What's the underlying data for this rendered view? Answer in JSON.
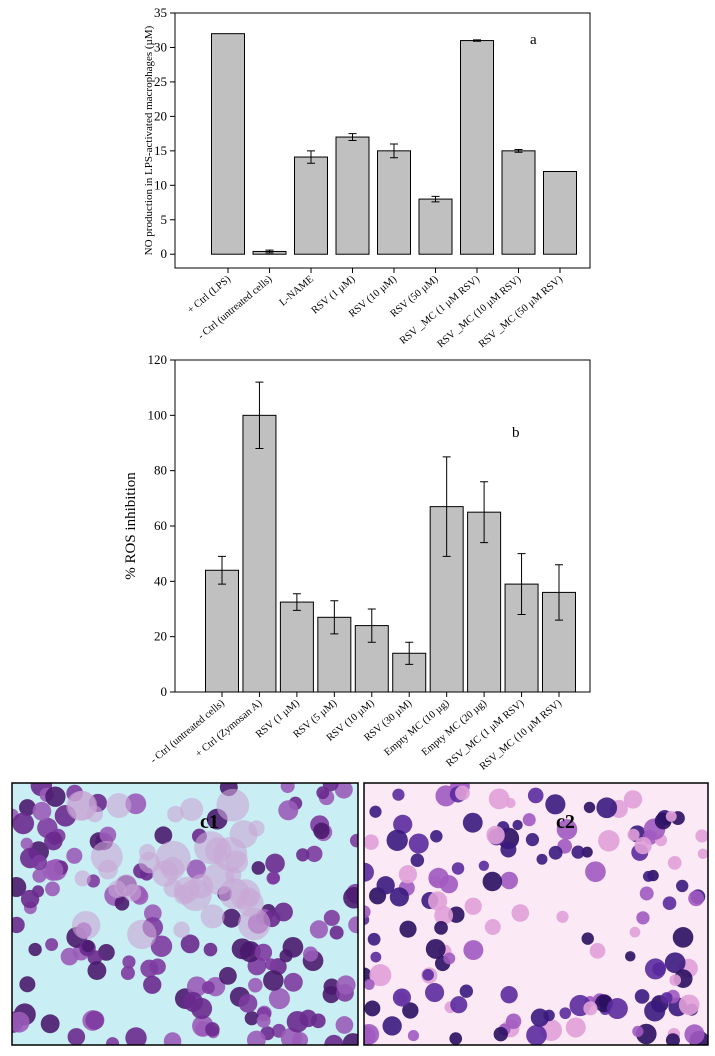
{
  "chart_data": [
    {
      "type": "bar",
      "annotation": "a",
      "y_label": "NO production in LPS-activated macrophages (µM)",
      "categories": [
        "+ Ctrl (LPS)",
        "- Ctrl (untreated cells)",
        "L-NAME",
        "RSV (1 µM)",
        "RSV (10 µM)",
        "RSV (50 µM)",
        "RSV _MC (1 µM RSV)",
        "RSV _MC (10 µM RSV)",
        "RSV _MC (50 µM RSV)"
      ],
      "values": [
        32,
        0.4,
        14.1,
        17,
        15,
        8,
        31,
        15,
        12
      ],
      "errors": [
        null,
        0.2,
        0.9,
        0.5,
        1,
        0.4,
        0.1,
        0.2,
        null
      ],
      "color": "#c0c0c0",
      "ylim": [
        -2,
        35
      ],
      "yticks": [
        0,
        5,
        10,
        15,
        20,
        25,
        30,
        35
      ]
    },
    {
      "type": "bar",
      "annotation": "b",
      "y_label": "% ROS inhibition",
      "categories": [
        "- Ctrl (untreated cells)",
        "+ Ctrl (Zymosan A)",
        "RSV (1 µM)",
        "RSV (5 µM)",
        "RSV (10 µM)",
        "RSV (30 µM)",
        "Empty MC (10 µg)",
        "Empty MC (20 µg)",
        "RSV_MC (1 µM RSV)",
        "RSV_MC (10 µM RSV)"
      ],
      "values": [
        44,
        100,
        32.5,
        27,
        24,
        14,
        67,
        65,
        39,
        36
      ],
      "errors": [
        5,
        12,
        3,
        6,
        6,
        4,
        18,
        11,
        11,
        10
      ],
      "color": "#c0c0c0",
      "ylim": [
        0,
        120
      ],
      "yticks": [
        0,
        20,
        40,
        60,
        80,
        100,
        120
      ]
    }
  ],
  "panels": [
    {
      "label": "c1"
    },
    {
      "label": "c2"
    }
  ]
}
